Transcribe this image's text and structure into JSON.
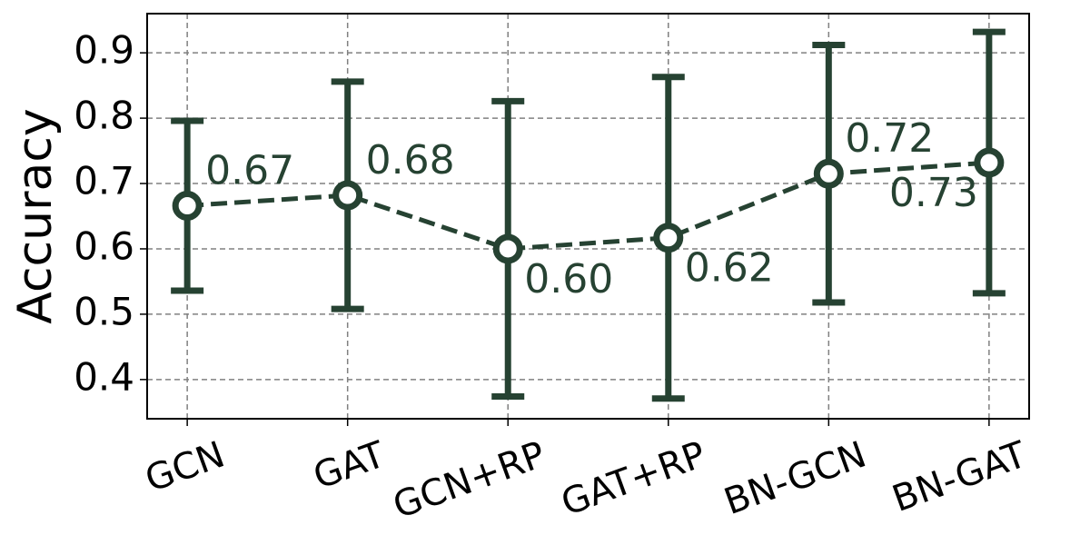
{
  "chart_data": {
    "type": "errorbar-line",
    "ylabel": "Accuracy",
    "categories": [
      "GCN",
      "GAT",
      "GCN+RP",
      "GAT+RP",
      "BN-GCN",
      "BN-GAT"
    ],
    "values": [
      0.666,
      0.682,
      0.6,
      0.617,
      0.715,
      0.732
    ],
    "value_labels": [
      "0.67",
      "0.68",
      "0.60",
      "0.62",
      "0.72",
      "0.73"
    ],
    "errors": [
      0.13,
      0.174,
      0.226,
      0.246,
      0.197,
      0.2
    ],
    "color": "#264232",
    "ylim": [
      0.34,
      0.96
    ],
    "yticks": [
      0.4,
      0.5,
      0.6,
      0.7,
      0.8,
      0.9
    ],
    "grid": true
  }
}
